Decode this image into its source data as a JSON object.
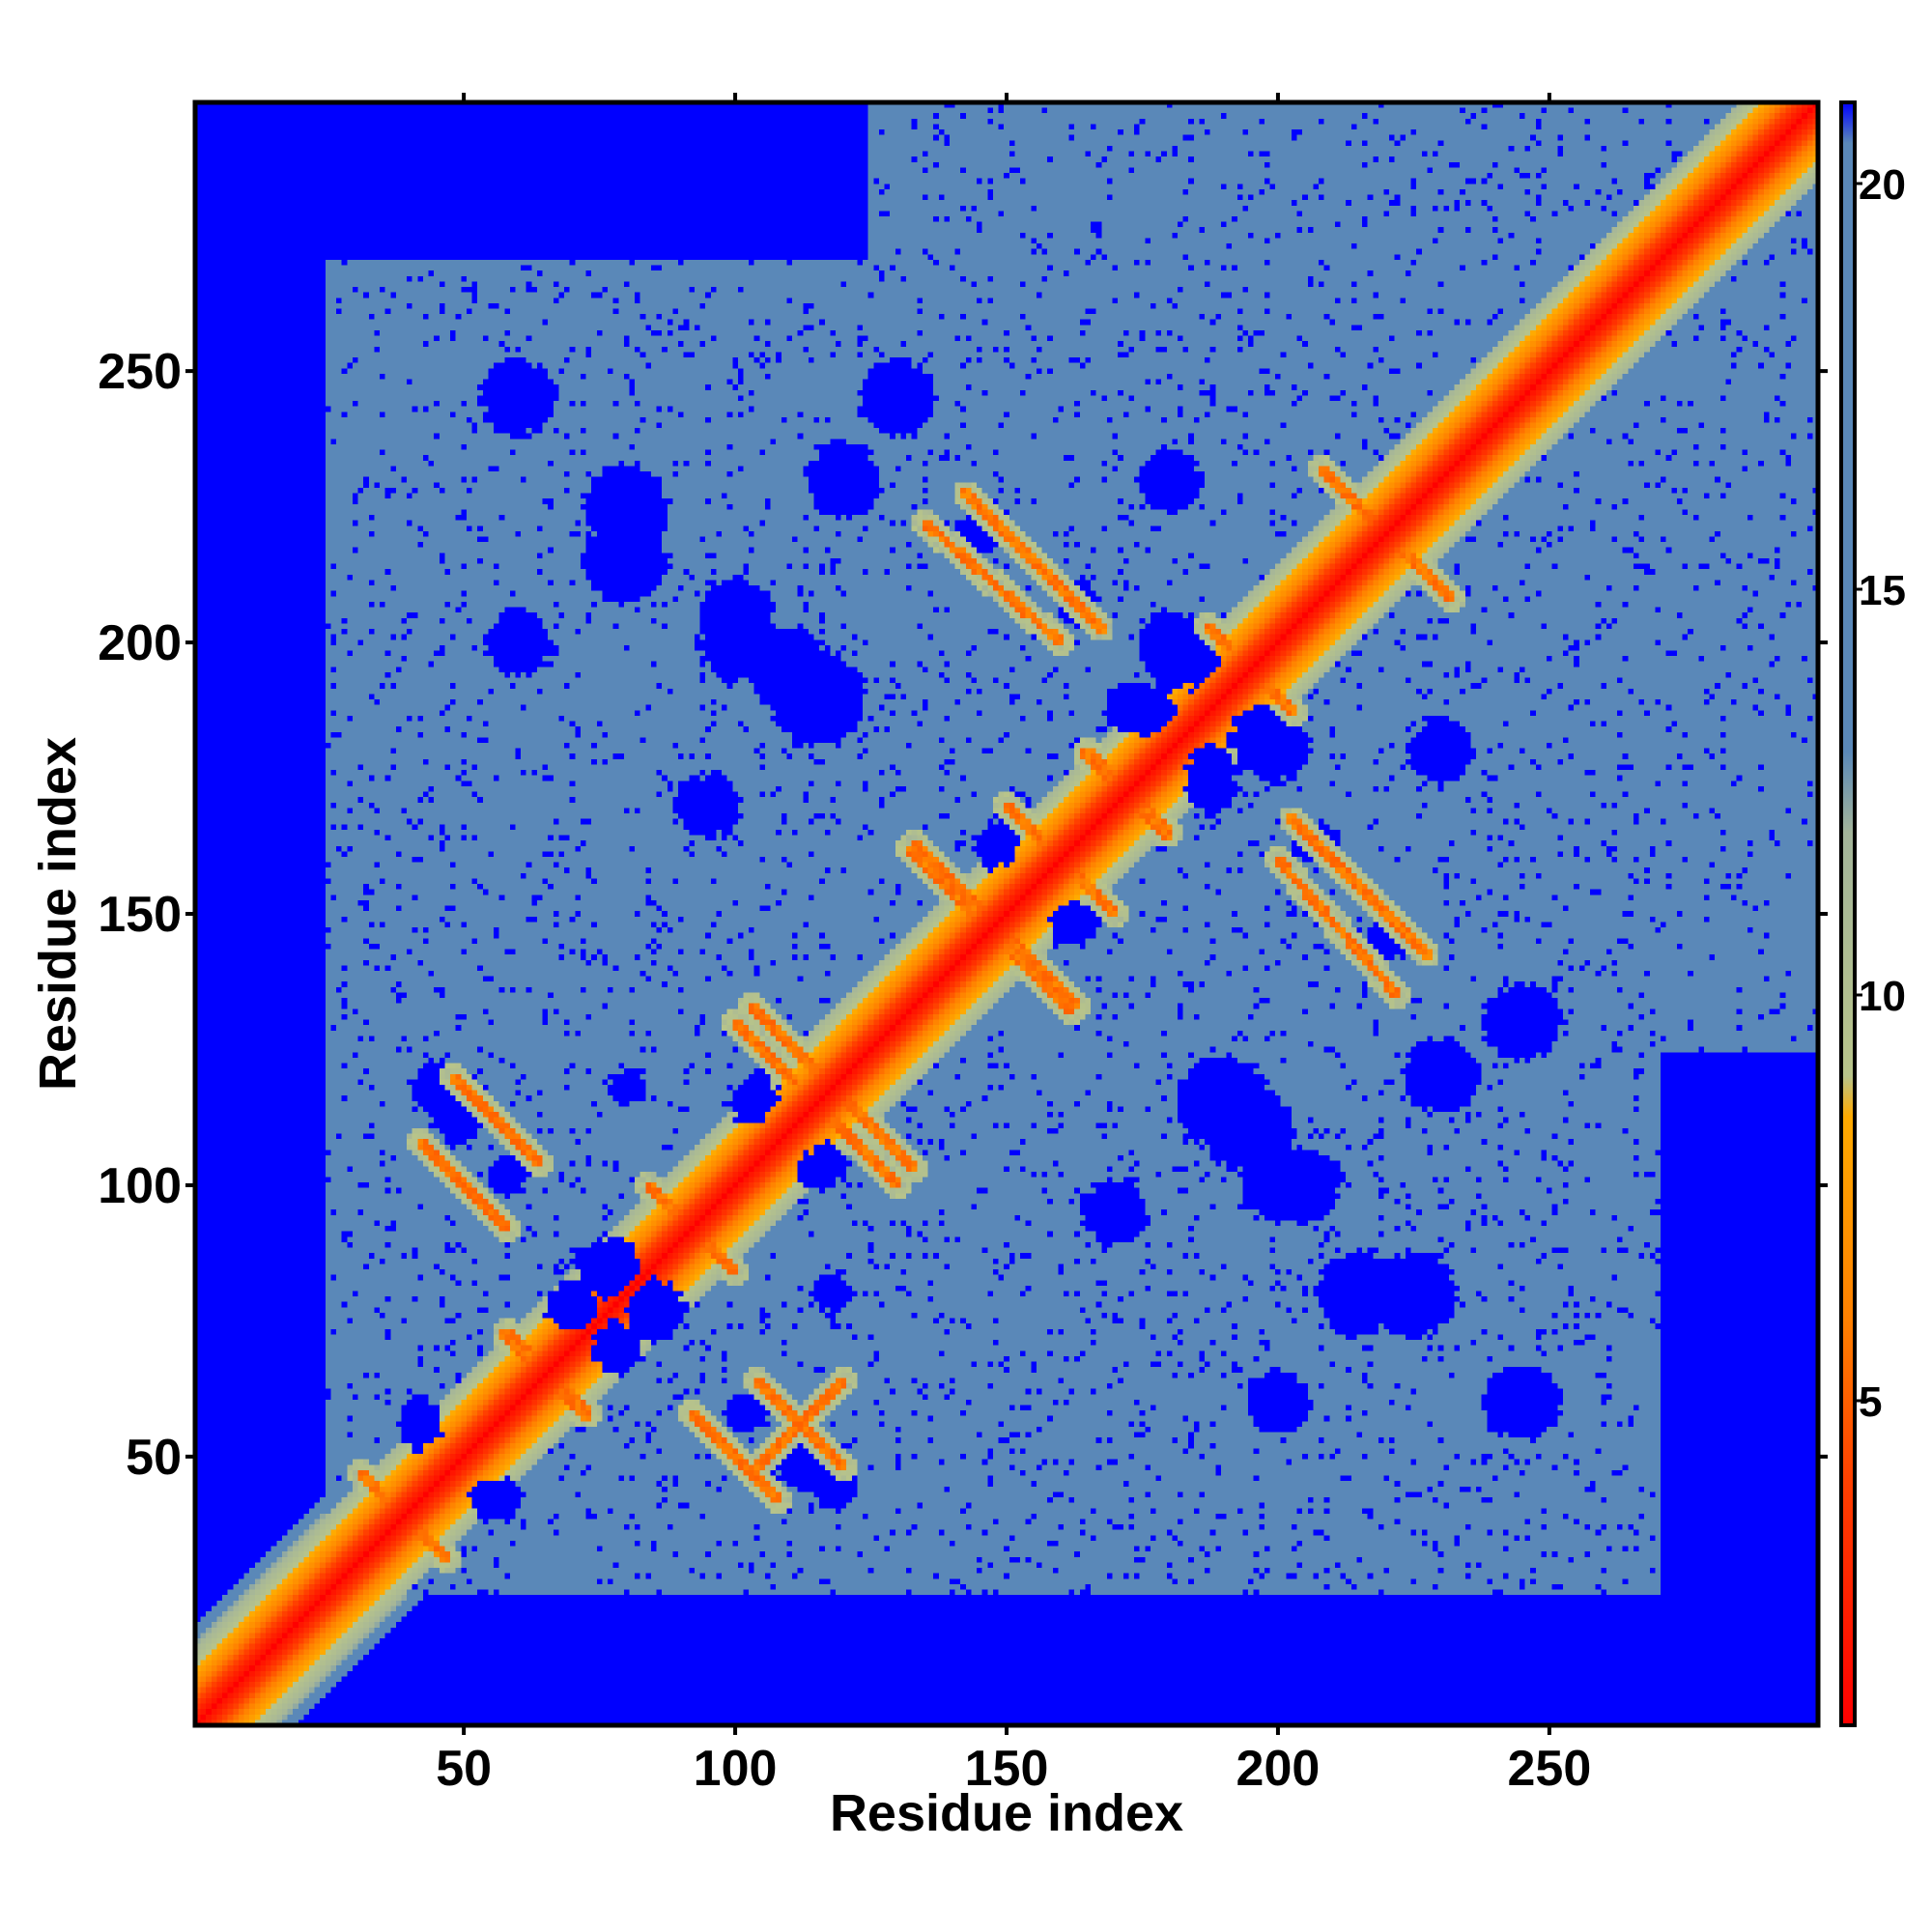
{
  "chart_data": {
    "type": "heatmap",
    "title": "",
    "xlabel": "Residue index",
    "ylabel": "Residue index",
    "n_residues": 299,
    "xlim": [
      1,
      299
    ],
    "ylim": [
      1,
      299
    ],
    "x_ticks": [
      50,
      100,
      150,
      200,
      250
    ],
    "y_ticks": [
      50,
      100,
      150,
      200,
      250
    ],
    "colorbar": {
      "range": [
        1,
        21
      ],
      "ticks": [
        5,
        10,
        15,
        20
      ],
      "stops": [
        {
          "value": 1,
          "color": "#ff0000"
        },
        {
          "value": 4,
          "color": "#ff4000"
        },
        {
          "value": 6,
          "color": "#ff8000"
        },
        {
          "value": 8.5,
          "color": "#ffaa00"
        },
        {
          "value": 9,
          "color": "#b8c48a"
        },
        {
          "value": 12,
          "color": "#a3b49a"
        },
        {
          "value": 13,
          "color": "#5a88b8"
        },
        {
          "value": 20.5,
          "color": "#5a88b8"
        },
        {
          "value": 21,
          "color": "#0000ff"
        }
      ]
    },
    "background_color": "#0000ff",
    "contact_region_color": "#5a88b8",
    "diagonal_color": "#ff0000",
    "contact_regions": [
      {
        "x": [
          25,
          135
        ],
        "y": [
          25,
          135
        ]
      },
      {
        "x": [
          25,
          270
        ],
        "y": [
          120,
          270
        ]
      },
      {
        "x": [
          120,
          270
        ],
        "y": [
          25,
          270
        ]
      },
      {
        "x": [
          25,
          135
        ],
        "y": [
          130,
          265
        ]
      },
      {
        "x": [
          130,
          265
        ],
        "y": [
          25,
          135
        ]
      },
      {
        "x": [
          125,
          300
        ],
        "y": [
          125,
          300
        ]
      }
    ],
    "holes": [
      {
        "x": 45,
        "y": 118,
        "r": 4
      },
      {
        "x": 80,
        "y": 118,
        "r": 3
      },
      {
        "x": 58,
        "y": 102,
        "r": 3
      },
      {
        "x": 85,
        "y": 77,
        "r": 5
      },
      {
        "x": 70,
        "y": 78,
        "r": 4
      },
      {
        "x": 42,
        "y": 55,
        "r": 3
      },
      {
        "x": 57,
        "y": 42,
        "r": 3
      },
      {
        "x": 112,
        "y": 49,
        "r": 4
      },
      {
        "x": 115,
        "y": 103,
        "r": 3
      },
      {
        "x": 104,
        "y": 117,
        "r": 3
      },
      {
        "x": 148,
        "y": 163,
        "r": 3
      },
      {
        "x": 162,
        "y": 148,
        "r": 3
      },
      {
        "x": 163,
        "y": 208,
        "r": 3
      },
      {
        "x": 145,
        "y": 220,
        "r": 3
      },
      {
        "x": 207,
        "y": 163,
        "r": 3
      },
      {
        "x": 221,
        "y": 147,
        "r": 3
      },
      {
        "x": 182,
        "y": 198,
        "r": 6
      },
      {
        "x": 200,
        "y": 180,
        "r": 5
      },
      {
        "x": 176,
        "y": 188,
        "r": 4
      },
      {
        "x": 188,
        "y": 173,
        "r": 4
      },
      {
        "x": 190,
        "y": 115,
        "r": 8
      },
      {
        "x": 215,
        "y": 80,
        "r": 7
      },
      {
        "x": 200,
        "y": 100,
        "r": 6
      },
      {
        "x": 110,
        "y": 195,
        "r": 7
      },
      {
        "x": 80,
        "y": 225,
        "r": 7
      },
      {
        "x": 100,
        "y": 205,
        "r": 6
      },
      {
        "x": 230,
        "y": 120,
        "r": 6
      },
      {
        "x": 120,
        "y": 230,
        "r": 6
      },
      {
        "x": 170,
        "y": 95,
        "r": 5
      },
      {
        "x": 95,
        "y": 170,
        "r": 5
      },
      {
        "x": 245,
        "y": 60,
        "r": 6
      },
      {
        "x": 60,
        "y": 245,
        "r": 6
      },
      {
        "x": 230,
        "y": 180,
        "r": 5
      },
      {
        "x": 180,
        "y": 230,
        "r": 5
      },
      {
        "x": 60,
        "y": 200,
        "r": 5
      },
      {
        "x": 200,
        "y": 60,
        "r": 5
      },
      {
        "x": 130,
        "y": 245,
        "r": 6
      },
      {
        "x": 245,
        "y": 130,
        "r": 6
      }
    ],
    "cross_features": [
      {
        "center": [
          39,
          39
        ],
        "arms": [
          [
            31,
            47
          ],
          [
            47,
            31
          ]
        ]
      },
      {
        "center": [
          56,
          112
        ],
        "arms": [
          [
            48,
            120
          ],
          [
            64,
            104
          ]
        ]
      },
      {
        "center": [
          112,
          56
        ],
        "arms": [
          [
            104,
            48
          ],
          [
            120,
            64
          ]
        ]
      },
      {
        "center": [
          65,
          65
        ],
        "arms": [
          [
            58,
            73
          ],
          [
            73,
            58
          ]
        ]
      },
      {
        "center": [
          100,
          50
        ],
        "arms": [
          [
            92,
            58
          ],
          [
            108,
            42
          ]
        ]
      },
      {
        "center": [
          50,
          100
        ],
        "arms": [
          [
            42,
            108
          ],
          [
            58,
            92
          ]
        ]
      },
      {
        "center": [
          92,
          92
        ],
        "arms": [
          [
            84,
            100
          ],
          [
            100,
            84
          ]
        ]
      },
      {
        "center": [
          118,
          118
        ],
        "arms": [
          [
            100,
            130
          ],
          [
            130,
            100
          ]
        ]
      },
      {
        "center": [
          148,
          148
        ],
        "arms": [
          [
            132,
            162
          ],
          [
            162,
            132
          ]
        ]
      },
      {
        "center": [
          155,
          215
        ],
        "arms": [
          [
            135,
            222
          ],
          [
            160,
            200
          ]
        ]
      },
      {
        "center": [
          215,
          155
        ],
        "arms": [
          [
            222,
            135
          ],
          [
            200,
            160
          ]
        ]
      },
      {
        "center": [
          172,
          172
        ],
        "arms": [
          [
            165,
            180
          ],
          [
            180,
            165
          ]
        ]
      },
      {
        "center": [
          195,
          195
        ],
        "arms": [
          [
            187,
            203
          ],
          [
            203,
            187
          ]
        ]
      },
      {
        "center": [
          220,
          220
        ],
        "arms": [
          [
            208,
            232
          ],
          [
            232,
            208
          ]
        ]
      },
      {
        "center": [
          160,
          160
        ],
        "arms": [
          [
            150,
            170
          ],
          [
            170,
            150
          ]
        ]
      }
    ]
  }
}
